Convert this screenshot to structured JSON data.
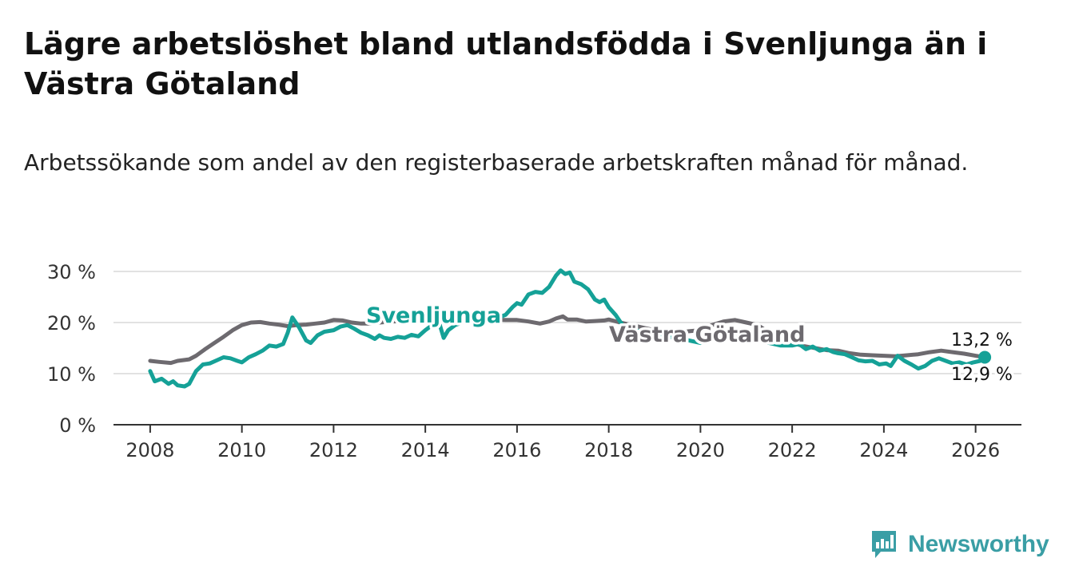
{
  "header": {
    "title": "Lägre arbetslöshet bland utlandsfödda i Svenljunga än i Västra Götaland",
    "subtitle": "Arbetssökande som andel av den registerbaserade arbetskraften månad för månad."
  },
  "brand": {
    "name": "Newsworthy",
    "color": "#3a9ea5"
  },
  "chart_data": {
    "type": "line",
    "title": "Lägre arbetslöshet bland utlandsfödda i Svenljunga än i Västra Götaland",
    "subtitle": "Arbetssökande som andel av den registerbaserade arbetskraften månad för månad.",
    "xlabel": "",
    "ylabel": "",
    "xlim": [
      2007.2,
      2027.0
    ],
    "ylim": [
      0,
      30
    ],
    "grid": true,
    "x_ticks": [
      2008,
      2010,
      2012,
      2014,
      2016,
      2018,
      2020,
      2022,
      2024,
      2026
    ],
    "x_tick_labels": [
      "2008",
      "2010",
      "2012",
      "2014",
      "2016",
      "2018",
      "2020",
      "2022",
      "2024",
      "2026"
    ],
    "y_ticks": [
      0,
      10,
      20,
      30
    ],
    "y_tick_labels": [
      "0 %",
      "10 %",
      "20 %",
      "30 %"
    ],
    "series": [
      {
        "name": "Svenljunga",
        "color": "#15a197",
        "label_text": "Svenljunga",
        "end_label": "12,9 %",
        "points": [
          [
            2008.0,
            10.5
          ],
          [
            2008.1,
            8.5
          ],
          [
            2008.25,
            9.0
          ],
          [
            2008.4,
            8.0
          ],
          [
            2008.5,
            8.5
          ],
          [
            2008.6,
            7.7
          ],
          [
            2008.75,
            7.5
          ],
          [
            2008.85,
            8.0
          ],
          [
            2009.0,
            10.5
          ],
          [
            2009.15,
            11.8
          ],
          [
            2009.3,
            12.0
          ],
          [
            2009.45,
            12.6
          ],
          [
            2009.6,
            13.2
          ],
          [
            2009.75,
            13.0
          ],
          [
            2009.9,
            12.5
          ],
          [
            2010.0,
            12.2
          ],
          [
            2010.15,
            13.2
          ],
          [
            2010.3,
            13.8
          ],
          [
            2010.45,
            14.5
          ],
          [
            2010.6,
            15.5
          ],
          [
            2010.75,
            15.3
          ],
          [
            2010.9,
            15.8
          ],
          [
            2011.0,
            18.0
          ],
          [
            2011.1,
            21.0
          ],
          [
            2011.25,
            19.0
          ],
          [
            2011.4,
            16.5
          ],
          [
            2011.5,
            16.0
          ],
          [
            2011.65,
            17.5
          ],
          [
            2011.8,
            18.2
          ],
          [
            2012.0,
            18.5
          ],
          [
            2012.15,
            19.2
          ],
          [
            2012.3,
            19.5
          ],
          [
            2012.45,
            18.8
          ],
          [
            2012.6,
            18.0
          ],
          [
            2012.75,
            17.5
          ],
          [
            2012.9,
            16.8
          ],
          [
            2013.0,
            17.5
          ],
          [
            2013.1,
            17.0
          ],
          [
            2013.25,
            16.8
          ],
          [
            2013.4,
            17.2
          ],
          [
            2013.55,
            17.0
          ],
          [
            2013.7,
            17.6
          ],
          [
            2013.85,
            17.3
          ],
          [
            2014.0,
            18.5
          ],
          [
            2014.15,
            19.5
          ],
          [
            2014.3,
            20.0
          ],
          [
            2014.4,
            17.0
          ],
          [
            2014.5,
            18.5
          ],
          [
            2014.65,
            19.5
          ],
          [
            2014.8,
            20.0
          ],
          [
            2015.0,
            20.0
          ],
          [
            2015.15,
            21.5
          ],
          [
            2015.3,
            20.5
          ],
          [
            2015.45,
            20.0
          ],
          [
            2015.6,
            21.0
          ],
          [
            2015.75,
            21.5
          ],
          [
            2015.9,
            23.0
          ],
          [
            2016.0,
            23.8
          ],
          [
            2016.1,
            23.5
          ],
          [
            2016.25,
            25.5
          ],
          [
            2016.4,
            26.0
          ],
          [
            2016.55,
            25.8
          ],
          [
            2016.7,
            27.0
          ],
          [
            2016.85,
            29.2
          ],
          [
            2016.95,
            30.2
          ],
          [
            2017.05,
            29.5
          ],
          [
            2017.15,
            29.8
          ],
          [
            2017.25,
            28.0
          ],
          [
            2017.4,
            27.5
          ],
          [
            2017.55,
            26.5
          ],
          [
            2017.7,
            24.5
          ],
          [
            2017.8,
            24.0
          ],
          [
            2017.9,
            24.5
          ],
          [
            2018.0,
            23.0
          ],
          [
            2018.15,
            21.5
          ],
          [
            2018.3,
            19.5
          ],
          [
            2018.45,
            19.0
          ],
          [
            2018.6,
            18.5
          ],
          [
            2018.75,
            18.0
          ],
          [
            2018.9,
            17.5
          ],
          [
            2019.0,
            18.0
          ],
          [
            2019.25,
            17.2
          ],
          [
            2019.5,
            17.0
          ],
          [
            2019.75,
            16.5
          ],
          [
            2020.0,
            16.0
          ],
          [
            2020.25,
            17.0
          ],
          [
            2020.5,
            17.5
          ],
          [
            2020.75,
            17.0
          ],
          [
            2021.0,
            17.0
          ],
          [
            2021.25,
            16.5
          ],
          [
            2021.5,
            16.0
          ],
          [
            2021.75,
            15.5
          ],
          [
            2022.0,
            15.5
          ],
          [
            2022.15,
            15.8
          ],
          [
            2022.3,
            14.8
          ],
          [
            2022.45,
            15.3
          ],
          [
            2022.6,
            14.5
          ],
          [
            2022.75,
            14.8
          ],
          [
            2022.9,
            14.2
          ],
          [
            2023.0,
            14.0
          ],
          [
            2023.15,
            13.8
          ],
          [
            2023.3,
            13.2
          ],
          [
            2023.45,
            12.6
          ],
          [
            2023.6,
            12.4
          ],
          [
            2023.75,
            12.5
          ],
          [
            2023.9,
            11.8
          ],
          [
            2024.05,
            12.0
          ],
          [
            2024.15,
            11.5
          ],
          [
            2024.3,
            13.5
          ],
          [
            2024.45,
            12.5
          ],
          [
            2024.6,
            11.8
          ],
          [
            2024.75,
            11.0
          ],
          [
            2024.9,
            11.5
          ],
          [
            2025.05,
            12.5
          ],
          [
            2025.2,
            13.0
          ],
          [
            2025.35,
            12.5
          ],
          [
            2025.5,
            12.0
          ],
          [
            2025.65,
            12.2
          ],
          [
            2025.8,
            11.8
          ],
          [
            2025.95,
            12.2
          ],
          [
            2026.1,
            12.5
          ],
          [
            2026.2,
            12.9
          ]
        ]
      },
      {
        "name": "Västra Götaland",
        "color": "#6d6a6f",
        "label_text": "Västra Götaland",
        "end_label": "13,2 %",
        "points": [
          [
            2008.0,
            12.5
          ],
          [
            2008.2,
            12.3
          ],
          [
            2008.45,
            12.1
          ],
          [
            2008.6,
            12.5
          ],
          [
            2008.85,
            12.8
          ],
          [
            2009.0,
            13.5
          ],
          [
            2009.2,
            14.8
          ],
          [
            2009.4,
            16.0
          ],
          [
            2009.6,
            17.2
          ],
          [
            2009.8,
            18.5
          ],
          [
            2010.0,
            19.5
          ],
          [
            2010.2,
            20.0
          ],
          [
            2010.4,
            20.1
          ],
          [
            2010.6,
            19.8
          ],
          [
            2010.8,
            19.6
          ],
          [
            2011.0,
            19.3
          ],
          [
            2011.2,
            19.5
          ],
          [
            2011.4,
            19.6
          ],
          [
            2011.6,
            19.8
          ],
          [
            2011.8,
            20.0
          ],
          [
            2012.0,
            20.5
          ],
          [
            2012.2,
            20.4
          ],
          [
            2012.4,
            20.0
          ],
          [
            2012.6,
            19.8
          ],
          [
            2012.8,
            19.8
          ],
          [
            2013.0,
            20.0
          ],
          [
            2013.25,
            20.2
          ],
          [
            2013.5,
            20.3
          ],
          [
            2013.75,
            20.2
          ],
          [
            2014.0,
            20.0
          ],
          [
            2014.25,
            20.5
          ],
          [
            2014.5,
            20.5
          ],
          [
            2014.75,
            20.3
          ],
          [
            2015.0,
            20.5
          ],
          [
            2015.25,
            20.8
          ],
          [
            2015.5,
            20.6
          ],
          [
            2015.75,
            20.5
          ],
          [
            2016.0,
            20.5
          ],
          [
            2016.25,
            20.2
          ],
          [
            2016.5,
            19.8
          ],
          [
            2016.7,
            20.2
          ],
          [
            2016.85,
            20.8
          ],
          [
            2017.0,
            21.2
          ],
          [
            2017.1,
            20.6
          ],
          [
            2017.3,
            20.6
          ],
          [
            2017.5,
            20.2
          ],
          [
            2017.7,
            20.3
          ],
          [
            2017.9,
            20.4
          ],
          [
            2018.0,
            20.6
          ],
          [
            2018.25,
            20.0
          ],
          [
            2018.5,
            19.5
          ],
          [
            2018.75,
            19.0
          ],
          [
            2019.0,
            18.5
          ],
          [
            2019.25,
            18.2
          ],
          [
            2019.5,
            18.0
          ],
          [
            2019.75,
            18.3
          ],
          [
            2020.0,
            18.5
          ],
          [
            2020.25,
            19.5
          ],
          [
            2020.5,
            20.2
          ],
          [
            2020.75,
            20.5
          ],
          [
            2021.0,
            20.0
          ],
          [
            2021.25,
            19.5
          ],
          [
            2021.5,
            18.0
          ],
          [
            2021.75,
            17.0
          ],
          [
            2022.0,
            16.0
          ],
          [
            2022.25,
            15.4
          ],
          [
            2022.5,
            15.0
          ],
          [
            2022.75,
            14.6
          ],
          [
            2023.0,
            14.5
          ],
          [
            2023.25,
            14.0
          ],
          [
            2023.5,
            13.7
          ],
          [
            2023.75,
            13.6
          ],
          [
            2024.0,
            13.5
          ],
          [
            2024.25,
            13.4
          ],
          [
            2024.5,
            13.6
          ],
          [
            2024.75,
            13.8
          ],
          [
            2025.0,
            14.2
          ],
          [
            2025.25,
            14.5
          ],
          [
            2025.5,
            14.2
          ],
          [
            2025.75,
            13.9
          ],
          [
            2026.0,
            13.5
          ],
          [
            2026.2,
            13.2
          ]
        ]
      }
    ]
  }
}
